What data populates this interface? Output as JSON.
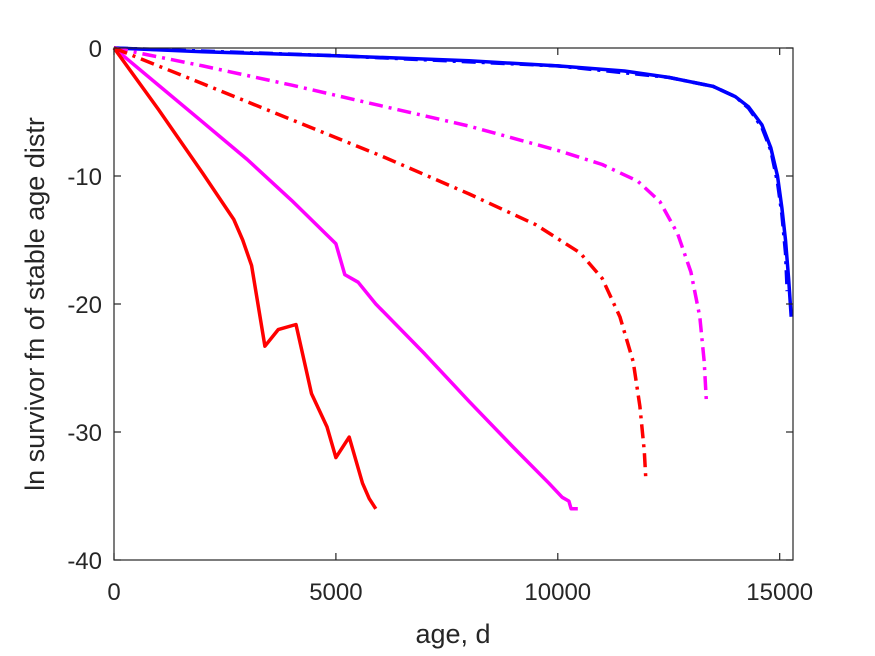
{
  "chart_data": {
    "type": "line",
    "title": "",
    "xlabel": "age, d",
    "ylabel": "ln survivor fn of stable age distr",
    "xlim": [
      0,
      15300
    ],
    "ylim": [
      -40,
      0
    ],
    "xticks": [
      0,
      5000,
      10000,
      15000
    ],
    "yticks": [
      0,
      -10,
      -20,
      -30,
      -40
    ],
    "xtick_labels": [
      "0",
      "5000",
      "10000",
      "15000"
    ],
    "ytick_labels": [
      "0",
      "-10",
      "-20",
      "-30",
      "-40"
    ],
    "grid": false,
    "series": [
      {
        "color": "#0000ff",
        "style": "solid",
        "points": [
          [
            0,
            0
          ],
          [
            2000,
            -0.3
          ],
          [
            5000,
            -0.6
          ],
          [
            8000,
            -1.0
          ],
          [
            10000,
            -1.4
          ],
          [
            11500,
            -1.8
          ],
          [
            12500,
            -2.3
          ],
          [
            13500,
            -3.0
          ],
          [
            14000,
            -3.8
          ],
          [
            14300,
            -4.6
          ],
          [
            14600,
            -6.0
          ],
          [
            14800,
            -7.8
          ],
          [
            14950,
            -10.0
          ],
          [
            15050,
            -12.5
          ],
          [
            15130,
            -15.0
          ],
          [
            15200,
            -18.0
          ],
          [
            15260,
            -21.0
          ]
        ]
      },
      {
        "color": "#0000ff",
        "style": "dashdot",
        "points": [
          [
            0,
            0
          ],
          [
            5000,
            -0.6
          ],
          [
            10000,
            -1.4
          ],
          [
            12500,
            -2.3
          ],
          [
            13500,
            -3.0
          ],
          [
            14000,
            -3.8
          ],
          [
            14300,
            -4.7
          ],
          [
            14600,
            -6.2
          ],
          [
            14800,
            -8.0
          ],
          [
            14950,
            -10.5
          ],
          [
            15050,
            -13.0
          ],
          [
            15130,
            -16.0
          ],
          [
            15170,
            -19.0
          ]
        ]
      },
      {
        "color": "#ff00ff",
        "style": "solid",
        "points": [
          [
            0,
            0
          ],
          [
            1000,
            -2.9
          ],
          [
            2000,
            -5.8
          ],
          [
            3000,
            -8.7
          ],
          [
            4000,
            -11.9
          ],
          [
            5000,
            -15.3
          ],
          [
            5200,
            -17.7
          ],
          [
            5500,
            -18.3
          ],
          [
            5900,
            -20.0
          ],
          [
            7000,
            -23.9
          ],
          [
            8000,
            -27.6
          ],
          [
            9000,
            -31.2
          ],
          [
            9800,
            -34.0
          ],
          [
            10100,
            -35.1
          ],
          [
            10250,
            -35.4
          ],
          [
            10300,
            -36.0
          ],
          [
            10450,
            -36.0
          ]
        ]
      },
      {
        "color": "#ff00ff",
        "style": "dashdot",
        "points": [
          [
            0,
            0
          ],
          [
            2000,
            -1.4
          ],
          [
            4000,
            -2.9
          ],
          [
            6000,
            -4.5
          ],
          [
            8000,
            -6.1
          ],
          [
            10000,
            -8.0
          ],
          [
            11000,
            -9.1
          ],
          [
            11800,
            -10.4
          ],
          [
            12300,
            -12.0
          ],
          [
            12700,
            -14.5
          ],
          [
            13000,
            -17.5
          ],
          [
            13200,
            -21.0
          ],
          [
            13300,
            -24.5
          ],
          [
            13350,
            -27.8
          ]
        ]
      },
      {
        "color": "#ff0000",
        "style": "solid",
        "points": [
          [
            0,
            0
          ],
          [
            1000,
            -4.8
          ],
          [
            2000,
            -9.8
          ],
          [
            2700,
            -13.4
          ],
          [
            2900,
            -15.0
          ],
          [
            3100,
            -17.0
          ],
          [
            3400,
            -23.3
          ],
          [
            3700,
            -22.0
          ],
          [
            4100,
            -21.6
          ],
          [
            4450,
            -27.0
          ],
          [
            4800,
            -29.6
          ],
          [
            5000,
            -32.0
          ],
          [
            5300,
            -30.4
          ],
          [
            5600,
            -34.0
          ],
          [
            5750,
            -35.2
          ],
          [
            5900,
            -36.0
          ]
        ]
      },
      {
        "color": "#ff0000",
        "style": "dashdot",
        "points": [
          [
            0,
            0
          ],
          [
            2000,
            -2.8
          ],
          [
            4000,
            -5.6
          ],
          [
            6000,
            -8.4
          ],
          [
            8000,
            -11.4
          ],
          [
            9500,
            -13.8
          ],
          [
            10500,
            -16.0
          ],
          [
            11000,
            -18.0
          ],
          [
            11400,
            -21.0
          ],
          [
            11700,
            -24.5
          ],
          [
            11850,
            -28.0
          ],
          [
            11950,
            -31.5
          ],
          [
            11980,
            -33.5
          ]
        ]
      }
    ]
  }
}
